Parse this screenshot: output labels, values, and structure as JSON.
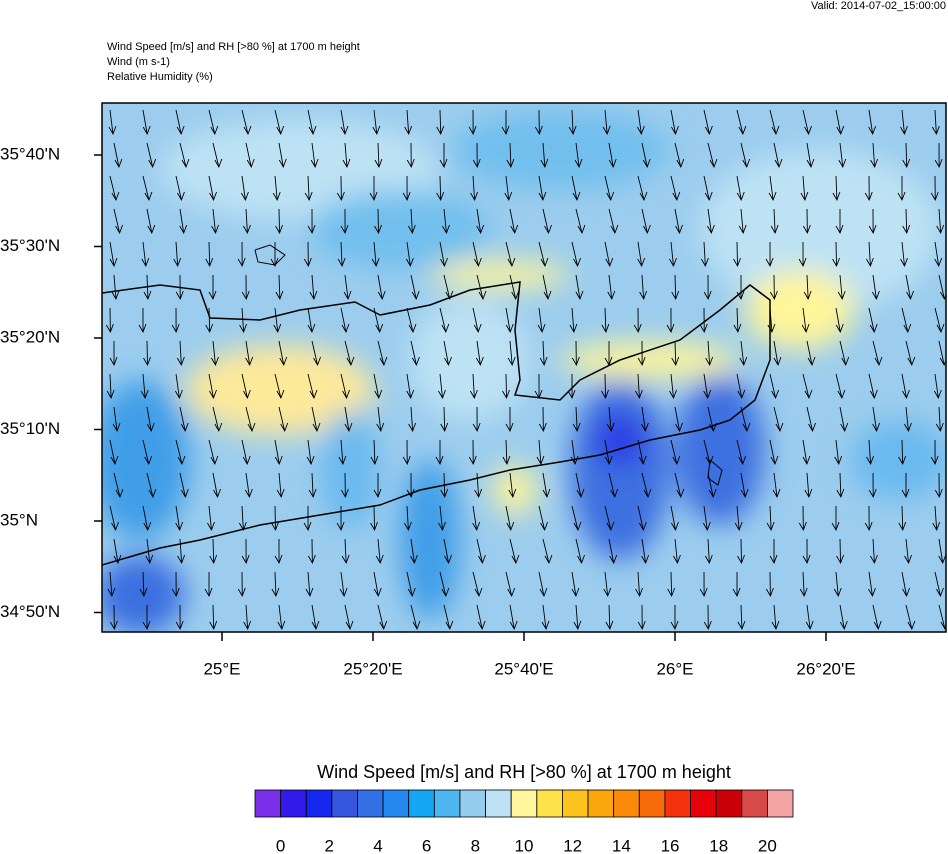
{
  "header": {
    "valid": "Valid: 2014-07-02_15:00:00",
    "lines": [
      "Wind Speed [m/s] and RH [>80 %] at 1700 m height",
      "Wind   (m s-1)",
      "Relative Humidity   (%)"
    ]
  },
  "map": {
    "lat_labels": [
      "35°40'N",
      "35°30'N",
      "35°20'N",
      "35°10'N",
      "35°N",
      "34°50'N"
    ],
    "lon_labels": [
      "25°E",
      "25°20'E",
      "25°40'E",
      "26°E",
      "26°20'E"
    ]
  },
  "colorbar": {
    "title": "Wind Speed [m/s] and RH [>80 %] at 1700 m height",
    "colors": [
      "#7a2ee8",
      "#3219ec",
      "#1428ef",
      "#3556df",
      "#3370e6",
      "#2389f0",
      "#15a6f4",
      "#4cb6f0",
      "#95cdee",
      "#bde2f4",
      "#fff59a",
      "#fde24a",
      "#fcc31e",
      "#fba70c",
      "#f98a0a",
      "#f76a0a",
      "#f5320c",
      "#e8000a",
      "#cc0008",
      "#d9494a",
      "#f4a4a4"
    ],
    "ticks": [
      0,
      2,
      4,
      6,
      8,
      10,
      12,
      14,
      16,
      18,
      20
    ]
  }
}
